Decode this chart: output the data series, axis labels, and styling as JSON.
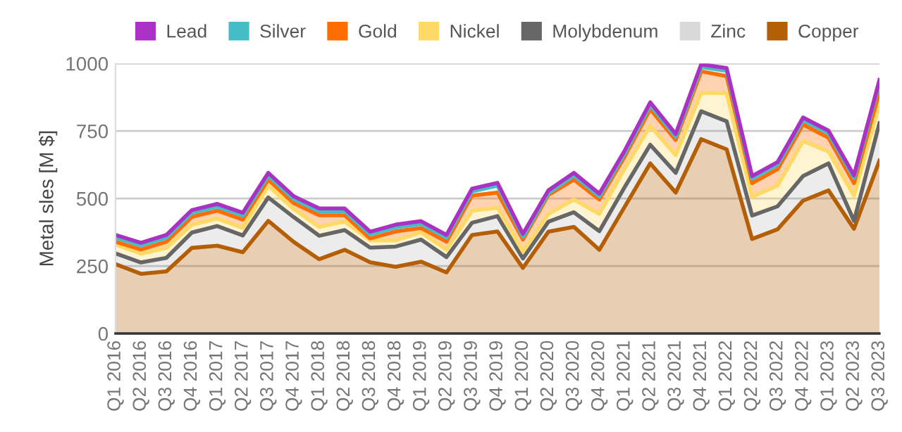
{
  "chart_data": {
    "type": "area",
    "stacked": true,
    "ylabel": "Metal sles [M $]",
    "categories": [
      "Q1 2016",
      "Q2 2016",
      "Q3 2016",
      "Q4 2016",
      "Q1 2017",
      "Q2 2017",
      "Q3 2017",
      "Q4 2017",
      "Q1 2018",
      "Q2 2018",
      "Q3 2018",
      "Q4 2018",
      "Q1 2019",
      "Q2 2019",
      "Q3 2019",
      "Q4 2019",
      "Q1 2020",
      "Q2 2020",
      "Q3 2020",
      "Q4 2020",
      "Q1 2021",
      "Q2 2021",
      "Q3 2021",
      "Q4 2021",
      "Q1 2022",
      "Q2 2022",
      "Q3 2022",
      "Q4 2022",
      "Q1 2023",
      "Q2 2023",
      "Q3 2023"
    ],
    "series": [
      {
        "name": "Copper",
        "color": "#b45f06",
        "values": [
          257,
          221,
          230,
          317,
          325,
          301,
          417,
          339,
          275,
          310,
          264,
          247,
          266,
          226,
          365,
          378,
          243,
          377,
          395,
          310,
          470,
          630,
          522,
          720,
          682,
          350,
          386,
          492,
          530,
          388,
          640
        ]
      },
      {
        "name": "Zinc",
        "color": "#d9d9d9",
        "values": [
          null,
          null,
          null,
          null,
          null,
          null,
          null,
          null,
          null,
          null,
          null,
          null,
          null,
          null,
          null,
          null,
          null,
          null,
          null,
          null,
          null,
          null,
          null,
          null,
          null,
          null,
          null,
          null,
          null,
          null,
          null
        ]
      },
      {
        "name": "Molybdenum",
        "color": "#666666",
        "values": [
          40,
          42,
          50,
          57,
          73,
          62,
          87,
          92,
          87,
          73,
          54,
          75,
          82,
          57,
          45,
          57,
          35,
          37,
          54,
          69,
          73,
          69,
          73,
          103,
          104,
          87,
          85,
          91,
          100,
          29,
          139
        ]
      },
      {
        "name": "Nickel",
        "color": "#ffd966",
        "values": [
          33,
          33,
          37,
          29,
          28,
          28,
          44,
          30,
          33,
          32,
          27,
          23,
          27,
          27,
          45,
          31,
          26,
          29,
          47,
          64,
          69,
          70,
          66,
          69,
          104,
          69,
          77,
          130,
          44,
          94,
          73
        ]
      },
      {
        "name": "Gold",
        "color": "#ff6d01",
        "values": [
          10,
          15,
          23,
          29,
          29,
          31,
          22,
          22,
          43,
          23,
          7,
          33,
          16,
          30,
          56,
          56,
          44,
          70,
          74,
          53,
          44,
          62,
          56,
          79,
          63,
          51,
          61,
          61,
          51,
          46,
          44
        ]
      },
      {
        "name": "Silver",
        "color": "#46bdc6",
        "values": [
          15,
          15,
          15,
          15,
          15,
          15,
          15,
          15,
          15,
          15,
          15,
          15,
          15,
          15,
          15,
          26,
          11,
          7,
          15,
          12,
          12,
          15,
          12,
          16,
          20,
          16,
          16,
          16,
          16,
          19,
          33
        ]
      },
      {
        "name": "Lead",
        "color": "#ab30c4",
        "values": [
          10,
          10,
          10,
          10,
          10,
          10,
          10,
          10,
          10,
          10,
          10,
          10,
          10,
          10,
          10,
          10,
          10,
          10,
          10,
          10,
          10,
          10,
          10,
          10,
          10,
          10,
          10,
          10,
          10,
          10,
          10
        ]
      }
    ],
    "ylim": [
      0,
      1000
    ],
    "yticks": [
      0,
      250,
      500,
      750,
      1000
    ],
    "grid": "y",
    "legend": "top"
  }
}
